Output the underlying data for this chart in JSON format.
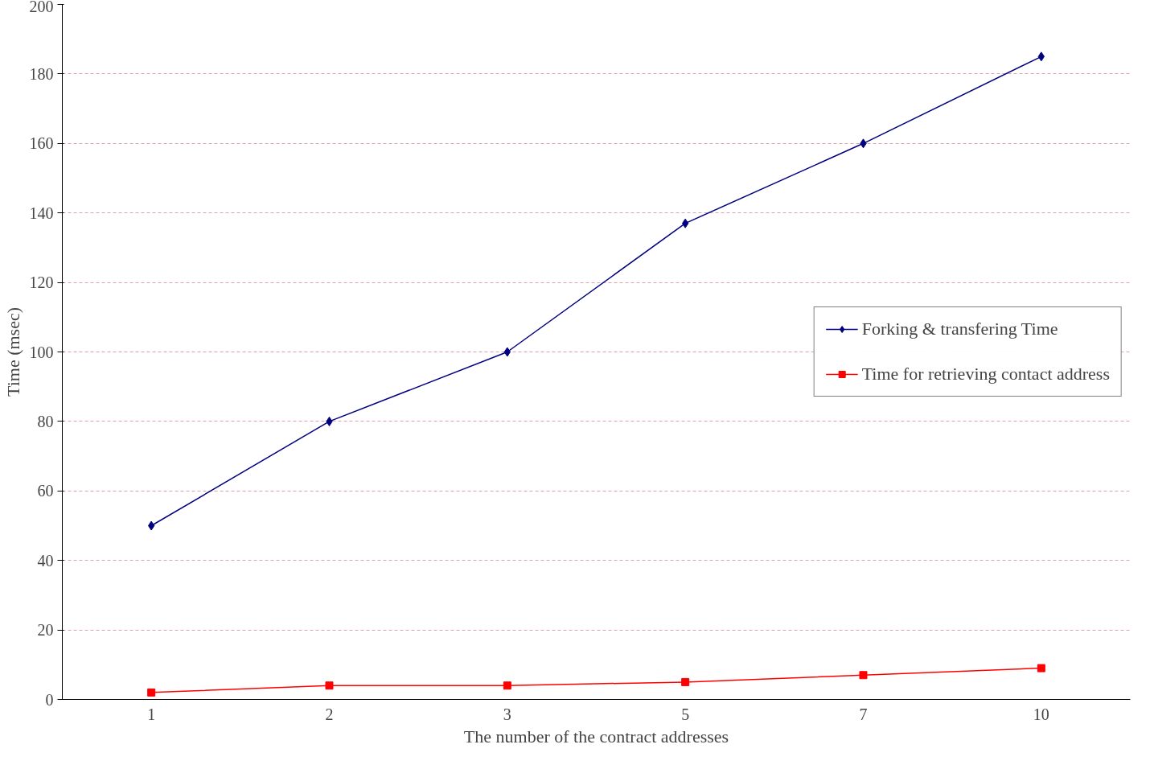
{
  "chart_data": {
    "type": "line",
    "xlabel": "The number of the contract addresses",
    "ylabel": "Time (msec)",
    "categories": [
      "1",
      "2",
      "3",
      "5",
      "7",
      "10"
    ],
    "series": [
      {
        "name": "Forking & transfering Time",
        "color": "#000080",
        "values": [
          50,
          80,
          100,
          137,
          160,
          185
        ],
        "marker": "diamond"
      },
      {
        "name": "Time for retrieving contact address",
        "color": "#ff0000",
        "values": [
          2,
          4,
          4,
          5,
          7,
          9
        ],
        "marker": "square"
      }
    ],
    "ylim": [
      0,
      200
    ],
    "yticks": [
      0,
      20,
      40,
      60,
      80,
      100,
      120,
      140,
      160,
      180,
      200
    ],
    "grid": "y",
    "legend": "right",
    "line_style": "solid"
  }
}
